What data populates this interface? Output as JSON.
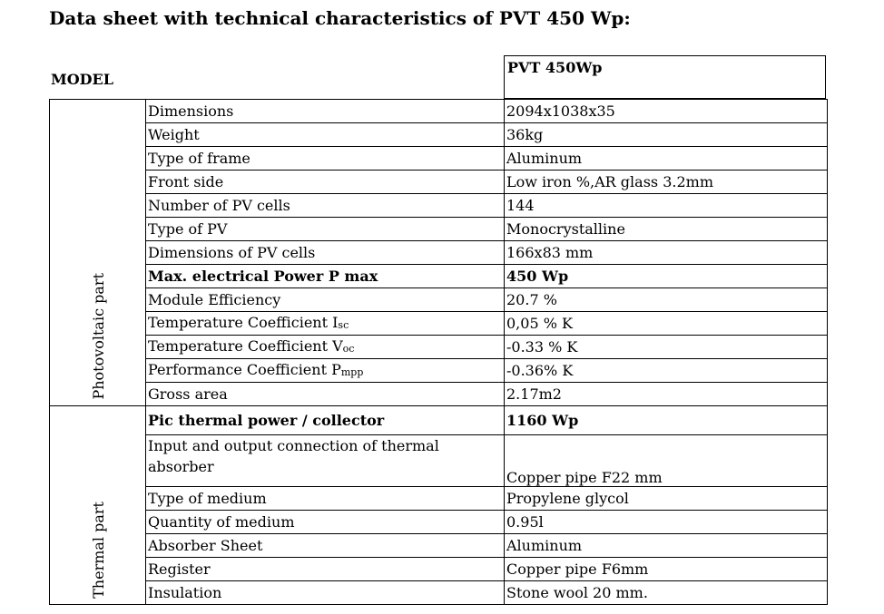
{
  "title": "Data sheet with technical characteristics of PVT 450 Wp:",
  "model_label": "MODEL",
  "model_value": "PVT 450Wp",
  "sections": {
    "pv": "Photovoltaic part",
    "thermal": "Thermal part"
  },
  "pv_rows": [
    {
      "param": "Dimensions",
      "value": "2094x1038x35"
    },
    {
      "param": "Weight",
      "value": "36kg"
    },
    {
      "param": "Type of frame",
      "value": "Aluminum"
    },
    {
      "param": "Front side",
      "value": "Low iron %,AR glass 3.2mm"
    },
    {
      "param": "Number of PV cells",
      "value": "144"
    },
    {
      "param": "Type of PV",
      "value": "Monocrystalline"
    },
    {
      "param": "Dimensions of PV cells",
      "value": "166x83 mm"
    },
    {
      "param": "Max. electrical Power P max",
      "value": "450 Wp"
    },
    {
      "param": "Module Efficiency",
      "value": "20.7 %"
    },
    {
      "param": "Temperature Coefficient I",
      "param_sub": "sc",
      "value": "0,05 % K"
    },
    {
      "param": "Temperature Coefficient V",
      "param_sub": "oc",
      "value": "-0.33 % K"
    },
    {
      "param": "Performance Coefficient P",
      "param_sub": "mpp",
      "value": "-0.36% K"
    },
    {
      "param": "Gross area",
      "value": "2.17m2"
    }
  ],
  "thermal_rows": [
    {
      "param": "Pic thermal power / collector",
      "value": "1160 Wp"
    },
    {
      "param": "Input and output connection of thermal absorber",
      "value": "Copper pipe F22 mm"
    },
    {
      "param": "Type of medium",
      "value": "Propylene glycol"
    },
    {
      "param": "Quantity of medium",
      "value": "0.95l"
    },
    {
      "param": "Absorber Sheet",
      "value": "Aluminum"
    },
    {
      "param": "Register",
      "value": "Copper pipe F6mm"
    },
    {
      "param": "Insulation",
      "value": "Stone wool 20 mm."
    }
  ]
}
